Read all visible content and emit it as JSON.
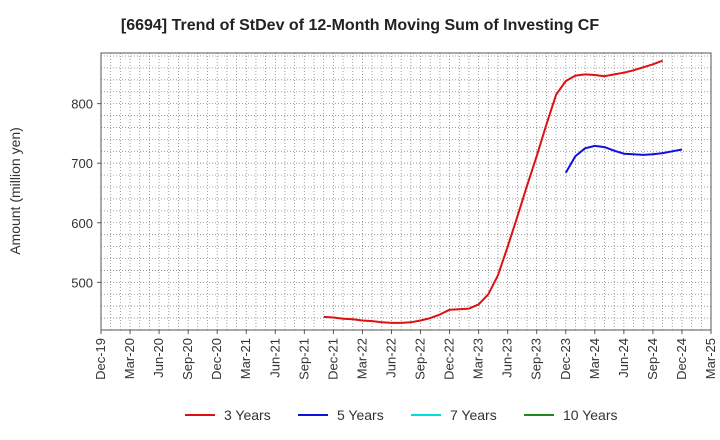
{
  "chart_data": {
    "type": "line",
    "title": "[6694]  Trend of StDev of 12-Month Moving Sum of Investing CF",
    "ylabel": "Amount (million yen)",
    "xlabel": "",
    "x_ticks": [
      "Dec-19",
      "Mar-20",
      "Jun-20",
      "Sep-20",
      "Dec-20",
      "Mar-21",
      "Jun-21",
      "Sep-21",
      "Dec-21",
      "Mar-22",
      "Jun-22",
      "Sep-22",
      "Dec-22",
      "Mar-23",
      "Jun-23",
      "Sep-23",
      "Dec-23",
      "Mar-24",
      "Jun-24",
      "Sep-24",
      "Dec-24",
      "Mar-25"
    ],
    "y_ticks": [
      500,
      600,
      700,
      800
    ],
    "ylim": [
      420,
      885
    ],
    "xlim": [
      "2019-12",
      "2025-03"
    ],
    "grid": true,
    "legend_position": "bottom",
    "series": [
      {
        "name": "3 Years",
        "color": "#dd1111",
        "points": [
          [
            "2021-11",
            442
          ],
          [
            "2021-12",
            441
          ],
          [
            "2022-01",
            439
          ],
          [
            "2022-02",
            438
          ],
          [
            "2022-03",
            436
          ],
          [
            "2022-04",
            435
          ],
          [
            "2022-05",
            433
          ],
          [
            "2022-06",
            432
          ],
          [
            "2022-07",
            432
          ],
          [
            "2022-08",
            433
          ],
          [
            "2022-09",
            436
          ],
          [
            "2022-10",
            440
          ],
          [
            "2022-11",
            446
          ],
          [
            "2022-12",
            454
          ],
          [
            "2023-01",
            455
          ],
          [
            "2023-02",
            456
          ],
          [
            "2023-03",
            463
          ],
          [
            "2023-04",
            480
          ],
          [
            "2023-05",
            512
          ],
          [
            "2023-06",
            560
          ],
          [
            "2023-07",
            610
          ],
          [
            "2023-08",
            662
          ],
          [
            "2023-09",
            712
          ],
          [
            "2023-10",
            765
          ],
          [
            "2023-11",
            815
          ],
          [
            "2023-12",
            838
          ],
          [
            "2024-01",
            847
          ],
          [
            "2024-02",
            849
          ],
          [
            "2024-03",
            848
          ],
          [
            "2024-04",
            846
          ],
          [
            "2024-05",
            849
          ],
          [
            "2024-06",
            852
          ],
          [
            "2024-07",
            856
          ],
          [
            "2024-08",
            861
          ],
          [
            "2024-09",
            866
          ],
          [
            "2024-10",
            872
          ]
        ]
      },
      {
        "name": "5 Years",
        "color": "#1111dd",
        "points": [
          [
            "2023-12",
            684
          ],
          [
            "2024-01",
            712
          ],
          [
            "2024-02",
            725
          ],
          [
            "2024-03",
            729
          ],
          [
            "2024-04",
            727
          ],
          [
            "2024-05",
            721
          ],
          [
            "2024-06",
            716
          ],
          [
            "2024-07",
            715
          ],
          [
            "2024-08",
            714
          ],
          [
            "2024-09",
            715
          ],
          [
            "2024-10",
            717
          ],
          [
            "2024-11",
            720
          ],
          [
            "2024-12",
            723
          ]
        ]
      },
      {
        "name": "7 Years",
        "color": "#00dddd",
        "points": []
      },
      {
        "name": "10 Years",
        "color": "#228822",
        "points": []
      }
    ]
  }
}
